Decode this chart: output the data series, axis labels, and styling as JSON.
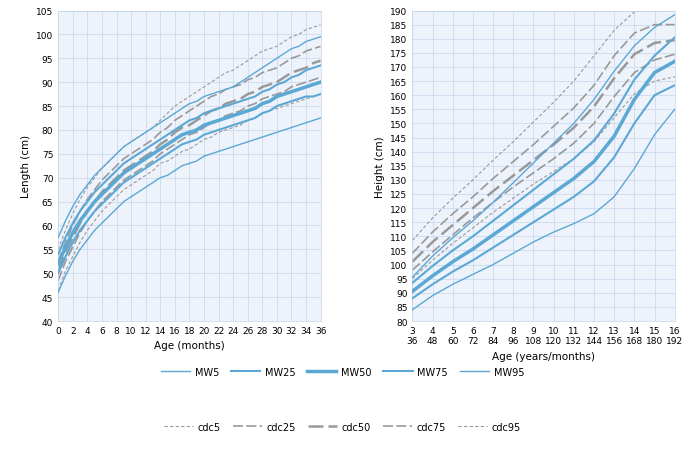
{
  "chart1": {
    "xlabel": "Age (months)",
    "ylabel": "Length (cm)",
    "xlim": [
      0,
      36
    ],
    "ylim": [
      40,
      105
    ],
    "xticks": [
      0,
      2,
      4,
      6,
      8,
      10,
      12,
      14,
      16,
      18,
      20,
      22,
      24,
      26,
      28,
      30,
      32,
      34,
      36
    ],
    "yticks": [
      40,
      45,
      50,
      55,
      60,
      65,
      70,
      75,
      80,
      85,
      90,
      95,
      100,
      105
    ],
    "mw_ages": [
      0,
      1,
      2,
      3,
      4,
      5,
      6,
      7,
      8,
      9,
      10,
      11,
      12,
      13,
      14,
      15,
      16,
      17,
      18,
      19,
      20,
      21,
      22,
      23,
      24,
      25,
      26,
      27,
      28,
      29,
      30,
      31,
      32,
      33,
      34,
      35,
      36
    ],
    "mw5": [
      46.0,
      49.5,
      52.5,
      55.0,
      57.0,
      59.0,
      60.5,
      62.0,
      63.5,
      65.0,
      66.0,
      67.0,
      68.0,
      69.0,
      70.0,
      70.5,
      71.5,
      72.5,
      73.0,
      73.5,
      74.5,
      75.0,
      75.5,
      76.0,
      76.5,
      77.0,
      77.5,
      78.0,
      78.5,
      79.0,
      79.5,
      80.0,
      80.5,
      81.0,
      81.5,
      82.0,
      82.5
    ],
    "mw25": [
      50.0,
      53.5,
      56.5,
      59.0,
      61.0,
      63.0,
      64.5,
      66.0,
      67.5,
      69.0,
      70.0,
      71.0,
      72.0,
      73.0,
      74.0,
      75.0,
      76.0,
      77.0,
      77.5,
      78.0,
      79.0,
      79.5,
      80.0,
      80.5,
      81.0,
      81.5,
      82.0,
      82.5,
      83.5,
      84.0,
      85.0,
      85.5,
      86.0,
      86.5,
      87.0,
      87.0,
      87.5
    ],
    "mw50": [
      52.0,
      55.5,
      58.5,
      61.0,
      63.0,
      65.0,
      66.5,
      68.0,
      69.5,
      71.0,
      72.0,
      73.0,
      74.0,
      75.0,
      76.0,
      77.0,
      78.0,
      79.0,
      79.5,
      80.0,
      81.0,
      81.5,
      82.0,
      82.5,
      83.0,
      83.5,
      84.0,
      84.5,
      85.5,
      86.0,
      87.0,
      87.5,
      88.0,
      88.5,
      89.0,
      89.5,
      90.0
    ],
    "mw75": [
      54.0,
      57.5,
      60.5,
      63.0,
      65.0,
      67.0,
      68.5,
      70.0,
      71.5,
      73.0,
      74.0,
      75.0,
      76.0,
      77.0,
      78.0,
      79.0,
      80.0,
      81.0,
      82.0,
      82.5,
      83.5,
      84.0,
      84.5,
      85.0,
      85.5,
      86.0,
      86.5,
      87.0,
      88.0,
      88.5,
      89.5,
      90.0,
      91.0,
      91.5,
      92.5,
      93.0,
      93.5
    ],
    "mw95": [
      57.5,
      61.0,
      64.0,
      66.5,
      68.5,
      70.5,
      72.0,
      73.5,
      75.0,
      76.5,
      77.5,
      78.5,
      79.5,
      80.5,
      81.5,
      82.5,
      83.5,
      84.5,
      85.5,
      86.0,
      87.0,
      87.5,
      88.0,
      88.5,
      89.0,
      90.0,
      91.0,
      92.0,
      93.0,
      94.0,
      95.0,
      96.0,
      97.0,
      97.5,
      98.5,
      99.0,
      99.5
    ],
    "cdc_ages": [
      0,
      1,
      2,
      3,
      4,
      5,
      6,
      7,
      8,
      9,
      10,
      11,
      12,
      13,
      14,
      15,
      16,
      17,
      18,
      19,
      20,
      21,
      22,
      23,
      24,
      25,
      26,
      27,
      28,
      29,
      30,
      31,
      32,
      33,
      34,
      35,
      36
    ],
    "cdc5": [
      46.5,
      50.5,
      53.5,
      56.5,
      59.0,
      61.0,
      63.0,
      64.5,
      66.0,
      67.5,
      68.5,
      69.5,
      70.5,
      71.5,
      73.0,
      73.5,
      74.5,
      75.5,
      76.0,
      77.0,
      78.0,
      78.5,
      79.5,
      80.0,
      80.5,
      81.0,
      82.0,
      82.5,
      83.5,
      84.0,
      84.5,
      85.0,
      85.5,
      86.0,
      86.5,
      87.0,
      87.5
    ],
    "cdc25": [
      48.5,
      52.5,
      55.5,
      58.5,
      61.0,
      63.0,
      65.0,
      66.5,
      68.0,
      69.5,
      70.5,
      71.5,
      72.5,
      73.5,
      75.0,
      76.0,
      77.0,
      78.0,
      79.0,
      79.5,
      80.5,
      81.5,
      82.0,
      83.0,
      83.5,
      84.0,
      85.0,
      85.5,
      86.5,
      87.0,
      87.5,
      88.0,
      89.0,
      89.5,
      90.0,
      90.5,
      91.0
    ],
    "cdc50": [
      50.5,
      54.5,
      57.5,
      60.5,
      63.0,
      65.0,
      67.0,
      68.5,
      70.0,
      71.5,
      72.5,
      73.5,
      74.5,
      75.5,
      77.0,
      78.0,
      79.5,
      80.5,
      81.0,
      82.0,
      83.0,
      84.0,
      84.5,
      85.5,
      86.0,
      86.5,
      87.5,
      88.0,
      89.0,
      89.5,
      90.0,
      91.0,
      92.0,
      92.5,
      93.0,
      94.0,
      94.5
    ],
    "cdc75": [
      52.5,
      56.5,
      60.0,
      63.0,
      65.5,
      67.5,
      69.5,
      71.0,
      72.5,
      74.0,
      75.0,
      76.0,
      77.0,
      78.0,
      79.5,
      80.5,
      82.0,
      83.0,
      84.0,
      85.0,
      86.0,
      87.0,
      87.5,
      88.5,
      89.0,
      89.5,
      90.5,
      91.0,
      92.0,
      92.5,
      93.0,
      94.0,
      95.0,
      95.5,
      96.5,
      97.0,
      97.5
    ],
    "cdc95": [
      55.0,
      59.0,
      62.5,
      65.5,
      68.0,
      70.0,
      72.0,
      73.5,
      75.0,
      76.5,
      77.5,
      78.5,
      79.5,
      80.5,
      82.0,
      83.5,
      85.0,
      86.0,
      87.0,
      88.0,
      89.0,
      90.0,
      91.0,
      92.0,
      92.5,
      93.5,
      94.5,
      95.5,
      96.5,
      97.0,
      97.5,
      98.5,
      99.5,
      100.0,
      101.0,
      101.5,
      102.0
    ]
  },
  "chart2": {
    "xlabel": "Age (years/months)",
    "ylabel": "Height (cm)",
    "xlim": [
      36,
      192
    ],
    "ylim": [
      80,
      190
    ],
    "xticks": [
      36,
      48,
      60,
      72,
      84,
      96,
      108,
      120,
      132,
      144,
      156,
      168,
      180,
      192
    ],
    "xtick_labels_top": [
      "3",
      "4",
      "5",
      "6",
      "7",
      "8",
      "9",
      "10",
      "11",
      "12",
      "13",
      "14",
      "15",
      "16"
    ],
    "xtick_labels_bot": [
      "36",
      "48",
      "60",
      "72",
      "84",
      "96",
      "108",
      "120",
      "132",
      "144",
      "156",
      "168",
      "180",
      "192"
    ],
    "yticks": [
      80,
      85,
      90,
      95,
      100,
      105,
      110,
      115,
      120,
      125,
      130,
      135,
      140,
      145,
      150,
      155,
      160,
      165,
      170,
      175,
      180,
      185,
      190
    ],
    "mw_ages": [
      36,
      48,
      60,
      72,
      84,
      96,
      108,
      120,
      132,
      144,
      156,
      168,
      180,
      192
    ],
    "mw5": [
      84.0,
      89.0,
      93.0,
      96.5,
      100.0,
      104.0,
      108.0,
      111.5,
      114.5,
      118.0,
      124.0,
      134.0,
      146.0,
      155.0
    ],
    "mw25": [
      88.0,
      93.0,
      97.5,
      101.5,
      106.0,
      110.5,
      115.0,
      119.5,
      124.0,
      129.5,
      138.0,
      150.0,
      160.0,
      163.5
    ],
    "mw50": [
      90.5,
      96.0,
      101.0,
      105.5,
      110.5,
      115.5,
      120.5,
      125.5,
      130.5,
      136.5,
      145.5,
      158.5,
      168.0,
      172.0
    ],
    "mw75": [
      93.5,
      99.5,
      105.0,
      110.0,
      115.5,
      121.0,
      126.5,
      132.0,
      137.5,
      144.0,
      153.5,
      165.5,
      174.0,
      180.5
    ],
    "mw95": [
      95.5,
      103.0,
      109.5,
      115.5,
      122.0,
      129.0,
      136.0,
      143.0,
      150.0,
      158.5,
      168.5,
      177.5,
      184.0,
      188.5
    ],
    "cdc_ages": [
      36,
      48,
      60,
      72,
      84,
      96,
      108,
      120,
      132,
      144,
      156,
      168,
      180,
      192
    ],
    "cdc5": [
      95.0,
      101.5,
      107.5,
      113.0,
      118.5,
      123.5,
      128.5,
      133.0,
      137.5,
      143.5,
      152.0,
      160.5,
      165.0,
      166.5
    ],
    "cdc25": [
      98.0,
      104.5,
      110.5,
      116.5,
      122.0,
      127.5,
      132.5,
      137.5,
      143.0,
      150.0,
      159.5,
      168.0,
      172.5,
      174.5
    ],
    "cdc50": [
      101.0,
      108.0,
      114.0,
      120.0,
      126.0,
      131.5,
      137.0,
      142.5,
      148.5,
      156.0,
      166.0,
      174.5,
      178.5,
      179.5
    ],
    "cdc75": [
      104.0,
      111.5,
      118.0,
      124.0,
      130.5,
      136.5,
      142.5,
      149.0,
      155.5,
      163.5,
      174.0,
      182.0,
      185.0,
      185.0
    ],
    "cdc95": [
      108.5,
      116.5,
      123.5,
      130.0,
      137.0,
      143.5,
      150.5,
      157.5,
      165.0,
      174.0,
      183.0,
      189.5,
      191.5,
      190.0
    ]
  },
  "mw_color": "#5ba8d5",
  "cdc_color": "#999999",
  "mw_linewidths": [
    1.0,
    1.5,
    2.5,
    1.5,
    1.0
  ],
  "cdc_linewidths": [
    0.8,
    1.2,
    1.8,
    1.2,
    0.8
  ],
  "bg_color": "#eef3fb",
  "grid_color": "#c5d5ea"
}
